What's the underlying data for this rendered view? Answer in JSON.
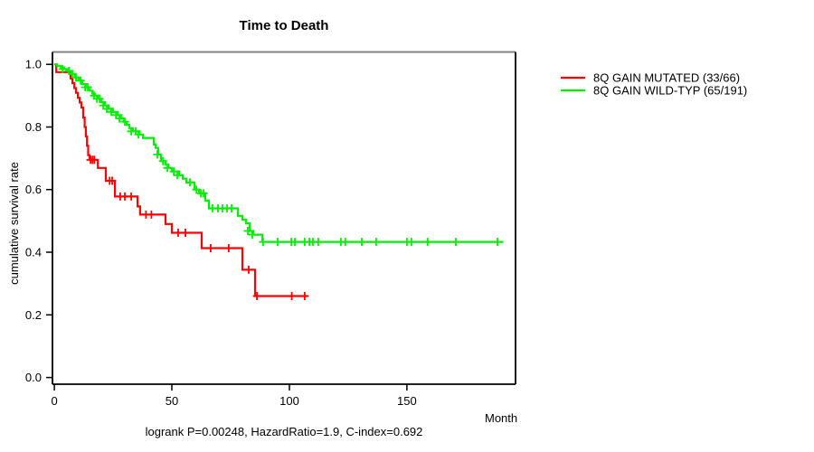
{
  "chart_data": {
    "type": "line",
    "subtype": "kaplan-meier-survival",
    "title": "Time to Death",
    "xlabel": "Month",
    "ylabel": "cumulative survival rate",
    "footer": "logrank P=0.00248, HazardRatio=1.9, C-index=0.692",
    "xlim": [
      -0.8,
      196.2
    ],
    "ylim": [
      -0.0215,
      1.0395
    ],
    "xticks": [
      0,
      50,
      100,
      150
    ],
    "yticks": [
      0.0,
      0.2,
      0.4,
      0.6,
      0.8,
      1.0
    ],
    "grid": false,
    "legend_position": "right-outside-top",
    "axis_color": "#000000",
    "box_top_color": "#828282",
    "series": [
      {
        "name": "8Q GAIN MUTATED (33/66)",
        "color": "#ff0000",
        "end_month": 107.7,
        "steps": [
          [
            0,
            1.0
          ],
          [
            0.8,
            0.975
          ],
          [
            6.9,
            0.955
          ],
          [
            7.7,
            0.94
          ],
          [
            8.5,
            0.924
          ],
          [
            9.2,
            0.909
          ],
          [
            10,
            0.893
          ],
          [
            10.8,
            0.878
          ],
          [
            11.5,
            0.862
          ],
          [
            12.3,
            0.83
          ],
          [
            12.9,
            0.8
          ],
          [
            13.4,
            0.77
          ],
          [
            13.9,
            0.74
          ],
          [
            14.4,
            0.71
          ],
          [
            15,
            0.695
          ],
          [
            18.5,
            0.669
          ],
          [
            21.9,
            0.628
          ],
          [
            25.8,
            0.578
          ],
          [
            35.4,
            0.546
          ],
          [
            36.5,
            0.52
          ],
          [
            47.3,
            0.49
          ],
          [
            50,
            0.462
          ],
          [
            62.7,
            0.413
          ],
          [
            80,
            0.344
          ],
          [
            85.4,
            0.26
          ]
        ],
        "censors": [
          [
            15.4,
            0.695
          ],
          [
            16.2,
            0.695
          ],
          [
            17,
            0.695
          ],
          [
            23.5,
            0.628
          ],
          [
            24.6,
            0.628
          ],
          [
            28,
            0.578
          ],
          [
            30,
            0.578
          ],
          [
            32.7,
            0.578
          ],
          [
            39,
            0.52
          ],
          [
            41.3,
            0.52
          ],
          [
            52.7,
            0.462
          ],
          [
            55.8,
            0.462
          ],
          [
            66.5,
            0.413
          ],
          [
            74.2,
            0.413
          ],
          [
            82.7,
            0.344
          ],
          [
            86.2,
            0.26
          ],
          [
            101,
            0.26
          ],
          [
            106.5,
            0.26
          ]
        ]
      },
      {
        "name": "8Q GAIN WILD-TYP (65/191)",
        "color": "#00ee00",
        "end_month": 191,
        "steps": [
          [
            0,
            1.0
          ],
          [
            1.2,
            0.995
          ],
          [
            2.7,
            0.99
          ],
          [
            4.2,
            0.985
          ],
          [
            5.8,
            0.979
          ],
          [
            7.3,
            0.969
          ],
          [
            8.8,
            0.958
          ],
          [
            10.4,
            0.948
          ],
          [
            11.9,
            0.937
          ],
          [
            13.5,
            0.927
          ],
          [
            15,
            0.916
          ],
          [
            16.2,
            0.906
          ],
          [
            17.3,
            0.9
          ],
          [
            18.5,
            0.89
          ],
          [
            20,
            0.879
          ],
          [
            21.5,
            0.869
          ],
          [
            23.1,
            0.858
          ],
          [
            25,
            0.848
          ],
          [
            26.9,
            0.838
          ],
          [
            28.5,
            0.827
          ],
          [
            29.6,
            0.817
          ],
          [
            30.8,
            0.807
          ],
          [
            31.9,
            0.796
          ],
          [
            33.5,
            0.786
          ],
          [
            36.2,
            0.776
          ],
          [
            37.7,
            0.765
          ],
          [
            42.3,
            0.744
          ],
          [
            43.1,
            0.733
          ],
          [
            44.2,
            0.712
          ],
          [
            45.4,
            0.691
          ],
          [
            47.3,
            0.68
          ],
          [
            48.5,
            0.669
          ],
          [
            50,
            0.658
          ],
          [
            53.1,
            0.646
          ],
          [
            54.6,
            0.635
          ],
          [
            56.2,
            0.623
          ],
          [
            59.6,
            0.6
          ],
          [
            61.5,
            0.588
          ],
          [
            64.2,
            0.565
          ],
          [
            65.8,
            0.54
          ],
          [
            78.1,
            0.516
          ],
          [
            80,
            0.504
          ],
          [
            81.5,
            0.492
          ],
          [
            83.1,
            0.468
          ],
          [
            84.6,
            0.456
          ],
          [
            88.5,
            0.433
          ]
        ],
        "censors": [
          [
            3.5,
            0.985
          ],
          [
            6.2,
            0.979
          ],
          [
            7.7,
            0.969
          ],
          [
            9.2,
            0.958
          ],
          [
            11.2,
            0.948
          ],
          [
            13.1,
            0.927
          ],
          [
            14.2,
            0.927
          ],
          [
            16.9,
            0.9
          ],
          [
            18.1,
            0.89
          ],
          [
            19.2,
            0.89
          ],
          [
            20.8,
            0.869
          ],
          [
            22.3,
            0.858
          ],
          [
            24.2,
            0.848
          ],
          [
            26.2,
            0.838
          ],
          [
            27.7,
            0.827
          ],
          [
            30,
            0.817
          ],
          [
            32.7,
            0.786
          ],
          [
            34.6,
            0.786
          ],
          [
            35.8,
            0.776
          ],
          [
            43.8,
            0.712
          ],
          [
            46.2,
            0.691
          ],
          [
            48.1,
            0.669
          ],
          [
            50.8,
            0.658
          ],
          [
            52.3,
            0.646
          ],
          [
            57.7,
            0.623
          ],
          [
            60.4,
            0.6
          ],
          [
            62.3,
            0.588
          ],
          [
            63.5,
            0.588
          ],
          [
            67.3,
            0.54
          ],
          [
            69.6,
            0.54
          ],
          [
            71.5,
            0.54
          ],
          [
            73.5,
            0.54
          ],
          [
            75.4,
            0.54
          ],
          [
            82.3,
            0.468
          ],
          [
            84.2,
            0.456
          ],
          [
            88.8,
            0.433
          ],
          [
            95,
            0.433
          ],
          [
            100.8,
            0.433
          ],
          [
            102.3,
            0.433
          ],
          [
            106.5,
            0.433
          ],
          [
            108.5,
            0.433
          ],
          [
            110,
            0.433
          ],
          [
            112.3,
            0.433
          ],
          [
            121.9,
            0.433
          ],
          [
            123.8,
            0.433
          ],
          [
            130.8,
            0.433
          ],
          [
            136.9,
            0.433
          ],
          [
            150,
            0.433
          ],
          [
            151.9,
            0.433
          ],
          [
            158.8,
            0.433
          ],
          [
            170.8,
            0.433
          ],
          [
            188.5,
            0.433
          ]
        ]
      }
    ]
  }
}
